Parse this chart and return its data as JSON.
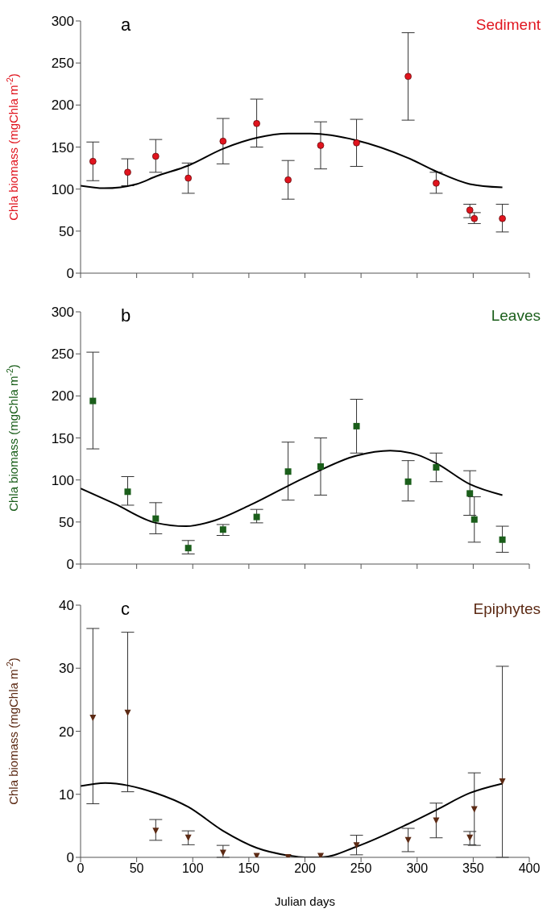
{
  "chart_data": [
    {
      "type": "scatter",
      "title": "a",
      "ylabel": "Chla biomass (mgChla m$^{-2}$)",
      "xlim": [
        0,
        400
      ],
      "xticks": [
        0,
        50,
        100,
        150,
        200,
        250,
        300,
        350,
        400
      ],
      "ylim": [
        0,
        300
      ],
      "yticks": [
        0,
        50,
        100,
        150,
        200,
        250,
        300
      ],
      "tick_labels": "y",
      "marker": "circle",
      "x": [
        11,
        42,
        67,
        96,
        127,
        157,
        185,
        214,
        246,
        292,
        317,
        347,
        351,
        376
      ],
      "series": [
        {
          "name": "Sediment",
          "color": "#e0141e",
          "values": [
            133,
            120,
            139,
            113,
            157,
            178,
            111,
            152,
            155,
            234,
            107,
            75,
            65,
            65
          ],
          "errors": [
            [
              110,
              156
            ],
            [
              104,
              136
            ],
            [
              120,
              159
            ],
            [
              95,
              131
            ],
            [
              130,
              184
            ],
            [
              150,
              207
            ],
            [
              88,
              134
            ],
            [
              124,
              180
            ],
            [
              127,
              183
            ],
            [
              182,
              286
            ],
            [
              95,
              120
            ],
            [
              66,
              82
            ],
            [
              59,
              72
            ],
            [
              49,
              82
            ]
          ]
        },
        {
          "type": "line",
          "color": "#000000",
          "marker": "none",
          "x": [
            0,
            21,
            50,
            67,
            96,
            127,
            157,
            185,
            205,
            246,
            292,
            317,
            347,
            376
          ],
          "values": [
            104,
            101,
            106,
            115,
            128,
            148,
            161,
            166,
            166,
            158,
            137,
            121,
            106,
            102
          ]
        }
      ]
    },
    {
      "type": "scatter",
      "title": "b",
      "ylabel": "Chla biomass (mgChla m$^{-2}$)",
      "xlim": [
        0,
        400
      ],
      "xticks": [
        0,
        50,
        100,
        150,
        200,
        250,
        300,
        350,
        400
      ],
      "ylim": [
        0,
        300
      ],
      "yticks": [
        0,
        50,
        100,
        150,
        200,
        250,
        300
      ],
      "tick_labels": "y",
      "marker": "square",
      "x": [
        11,
        42,
        67,
        96,
        127,
        157,
        185,
        214,
        246,
        292,
        317,
        347,
        351,
        376
      ],
      "series": [
        {
          "name": "Leaves",
          "color": "#1a5e1a",
          "values": [
            194,
            86,
            54,
            19,
            41,
            56,
            110,
            116,
            164,
            98,
            115,
            84,
            53,
            29
          ],
          "errors": [
            [
              137,
              252
            ],
            [
              70,
              104
            ],
            [
              36,
              73
            ],
            [
              12,
              28
            ],
            [
              34,
              47
            ],
            [
              49,
              65
            ],
            [
              76,
              145
            ],
            [
              82,
              150
            ],
            [
              132,
              196
            ],
            [
              75,
              123
            ],
            [
              98,
              132
            ],
            [
              58,
              111
            ],
            [
              26,
              80
            ],
            [
              14,
              45
            ]
          ]
        },
        {
          "type": "line",
          "color": "#000000",
          "marker": "none",
          "x": [
            0,
            30,
            67,
            94,
            120,
            151,
            200,
            246,
            276,
            300,
            317,
            347,
            376
          ],
          "values": [
            90,
            72,
            49,
            45,
            52,
            70,
            103,
            129,
            135,
            130,
            120,
            95,
            82
          ]
        }
      ]
    },
    {
      "type": "scatter",
      "title": "c",
      "ylabel": "Chla biomass (mgChla m$^{-2}$)",
      "xlabel": "Julian days",
      "xlim": [
        0,
        400
      ],
      "xticks": [
        0,
        50,
        100,
        150,
        200,
        250,
        300,
        350,
        400
      ],
      "ylim": [
        0,
        40
      ],
      "yticks": [
        0,
        10,
        20,
        30,
        40
      ],
      "marker": "triangle",
      "x": [
        11,
        42,
        67,
        96,
        127,
        157,
        185,
        214,
        246,
        292,
        317,
        347,
        351,
        376
      ],
      "series": [
        {
          "name": "Epiphytes",
          "color": "#5c2a14",
          "values": [
            22.1,
            22.9,
            4.2,
            3.1,
            0.7,
            0.2,
            0.0,
            0.2,
            1.9,
            2.7,
            5.8,
            3.1,
            7.6,
            12.0
          ],
          "errors": [
            [
              8.5,
              36.3
            ],
            [
              10.4,
              35.7
            ],
            [
              2.7,
              6.0
            ],
            [
              2.0,
              4.2
            ],
            [
              0,
              1.9
            ],
            null,
            null,
            null,
            [
              0.4,
              3.5
            ],
            [
              0.9,
              4.6
            ],
            [
              3.1,
              8.6
            ],
            [
              2.0,
              4.1
            ],
            [
              1.9,
              13.4
            ],
            [
              0,
              30.3
            ]
          ]
        },
        {
          "type": "line",
          "color": "#000000",
          "marker": "none",
          "x": [
            0,
            22,
            67,
            96,
            127,
            157,
            185,
            200,
            214,
            246,
            292,
            317,
            347,
            376
          ],
          "values": [
            11.3,
            11.8,
            10.2,
            8.0,
            4.2,
            1.5,
            0.3,
            0,
            0,
            1.7,
            5.3,
            7.5,
            10.2,
            11.7
          ]
        }
      ]
    }
  ]
}
